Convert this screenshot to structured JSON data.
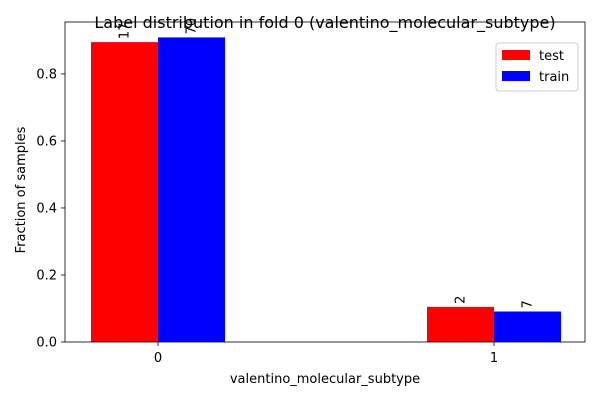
{
  "chart_data": {
    "type": "bar",
    "title": "Label distribution in fold 0 (valentino_molecular_subtype)",
    "xlabel": "valentino_molecular_subtype",
    "ylabel": "Fraction of samples",
    "categories": [
      "0",
      "1"
    ],
    "series": [
      {
        "name": "test",
        "color": "#ff0000",
        "values": [
          0.895,
          0.105
        ],
        "labels": [
          "17",
          "2"
        ]
      },
      {
        "name": "train",
        "color": "#0000ff",
        "values": [
          0.909,
          0.091
        ],
        "labels": [
          "70",
          "7"
        ]
      }
    ],
    "ylim": [
      0,
      0.955
    ],
    "yticks": [
      0.0,
      0.2,
      0.4,
      0.6,
      0.8
    ],
    "ytick_labels": [
      "0.0",
      "0.2",
      "0.4",
      "0.6",
      "0.8"
    ],
    "grid": false,
    "legend_position": "top-right"
  }
}
